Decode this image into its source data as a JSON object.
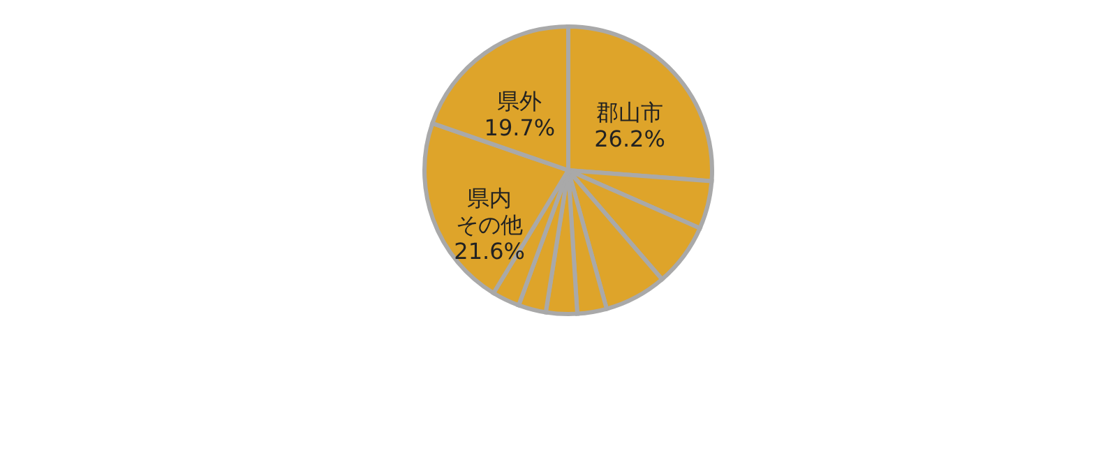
{
  "chart_data": {
    "type": "pie",
    "categories": [
      "郡山市",
      null,
      null,
      null,
      null,
      null,
      null,
      null,
      "県内その他",
      "県外"
    ],
    "values": [
      26.2,
      5.4,
      7.1,
      7.0,
      3.3,
      3.5,
      3.1,
      3.1,
      21.6,
      19.7
    ],
    "colors": [
      "#dea42a",
      "#dea42a",
      "#dea42a",
      "#dea42a",
      "#dea42a",
      "#dea42a",
      "#dea42a",
      "#dea42a",
      "#dea42a",
      "#dea42a"
    ],
    "value_labels": [
      "26.2%",
      null,
      null,
      null,
      null,
      null,
      null,
      null,
      "21.6%",
      "19.7%"
    ]
  }
}
